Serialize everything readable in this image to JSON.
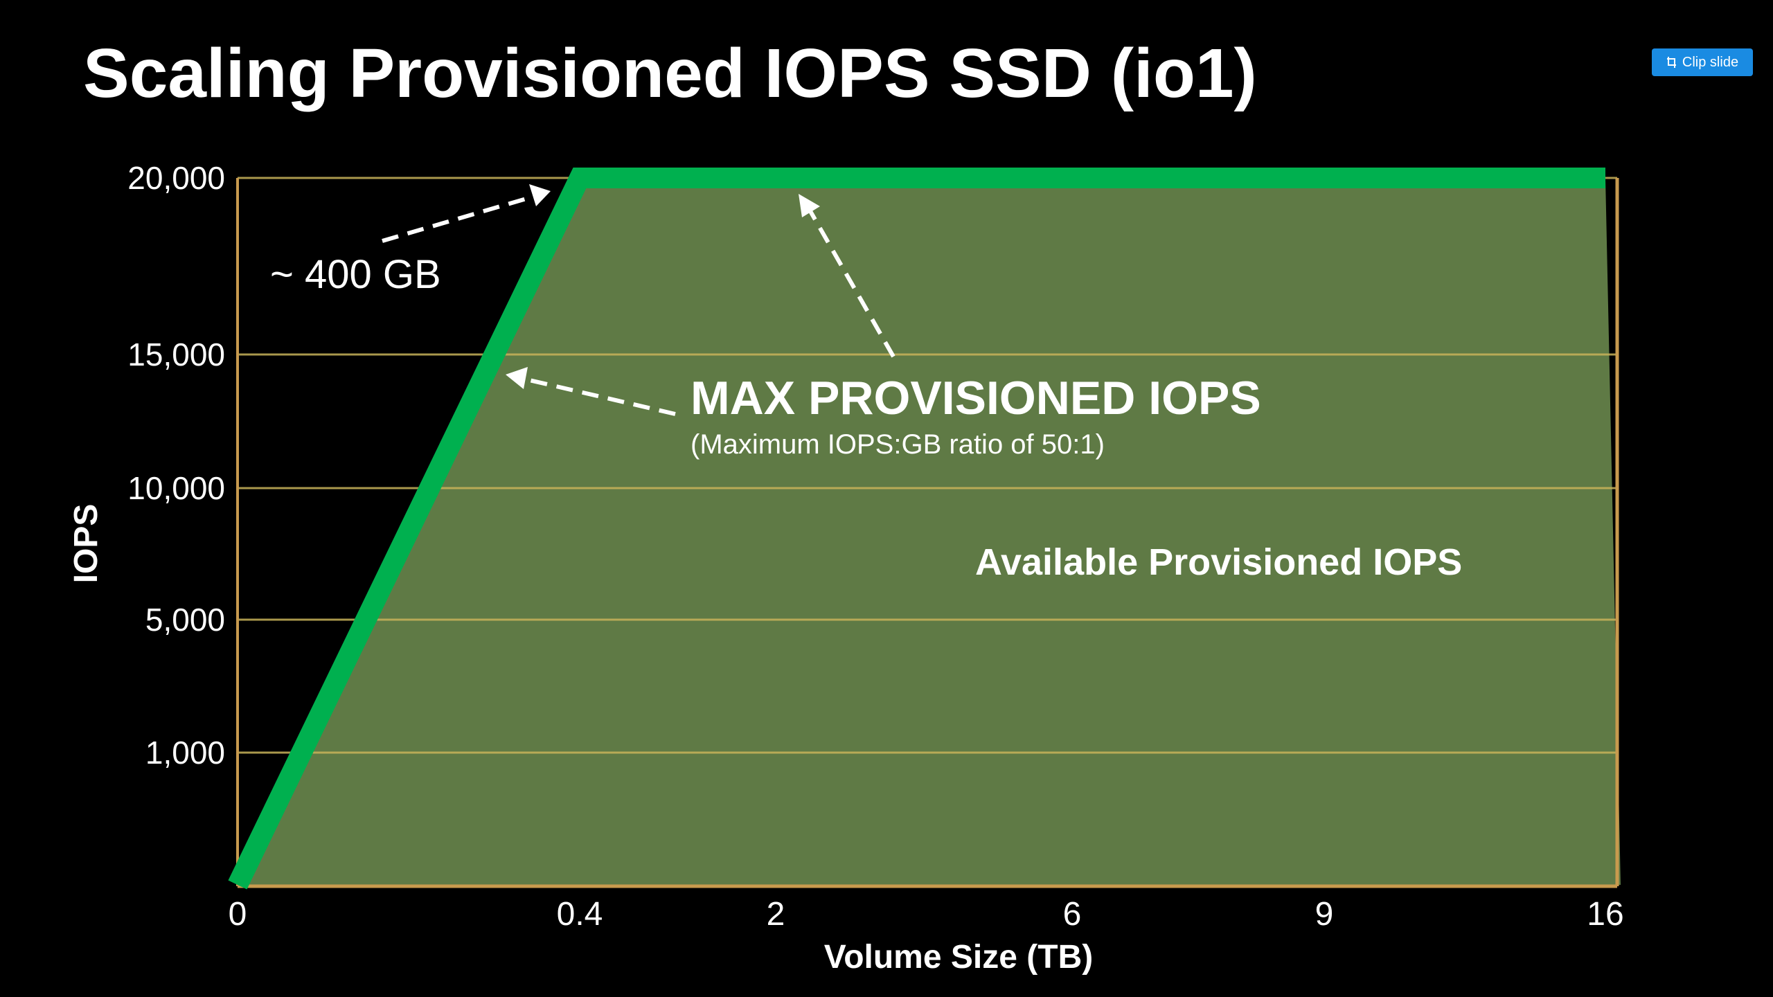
{
  "slide": {
    "clip_button_label": "Clip slide",
    "clip_icon": "clip-icon"
  },
  "chart_data": {
    "type": "area",
    "title": "Scaling Provisioned IOPS SSD (io1)",
    "xlabel": "Volume Size (TB)",
    "ylabel": "IOPS",
    "x_ticks": [
      "0",
      "0.4",
      "2",
      "6",
      "9",
      "16"
    ],
    "y_ticks": [
      "1,000",
      "5,000",
      "10,000",
      "15,000",
      "20,000"
    ],
    "y_tick_values": [
      1000,
      5000,
      10000,
      15000,
      20000
    ],
    "grid": true,
    "series": [
      {
        "x": [
          "0",
          "0.4",
          "16"
        ],
        "y": [
          0,
          20000,
          20000
        ]
      }
    ],
    "annotations": {
      "knee_label": "~ 400 GB",
      "max_title": "MAX PROVISIONED IOPS",
      "max_subtitle": "(Maximum IOPS:GB ratio of 50:1)",
      "area_label": "Available Provisioned IOPS"
    },
    "colors": {
      "background": "#000000",
      "area_fill": "#5f7a45",
      "max_line": "#00b04f",
      "gridline": "#c8b35a",
      "axis": "#c89a4e",
      "text": "#ffffff"
    }
  }
}
